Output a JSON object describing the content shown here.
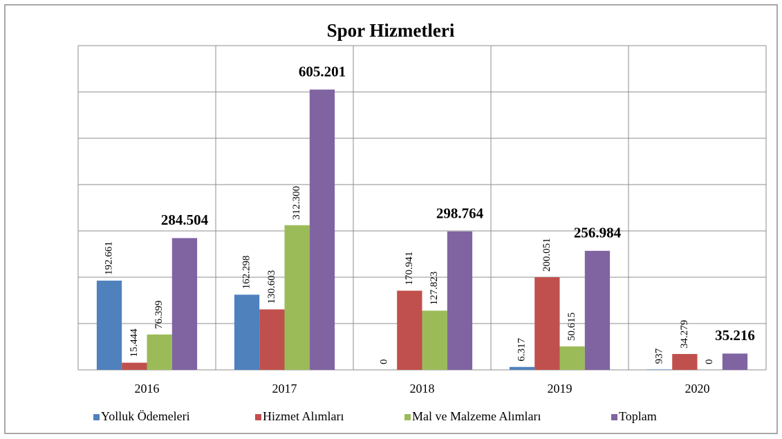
{
  "chart_data": {
    "type": "bar",
    "title": "Spor Hizmetleri",
    "categories": [
      "2016",
      "2017",
      "2018",
      "2019",
      "2020"
    ],
    "series": [
      {
        "name": "Yolluk Ödemeleri",
        "color": "#4f81bd",
        "values": [
          192661,
          162298,
          0,
          6317,
          937
        ],
        "value_labels": [
          "192.661",
          "162.298",
          "0",
          "6.317",
          "937"
        ]
      },
      {
        "name": "Hizmet Alımları",
        "color": "#c0504d",
        "values": [
          15444,
          130603,
          170941,
          200051,
          34279
        ],
        "value_labels": [
          "15.444",
          "130.603",
          "170.941",
          "200.051",
          "34.279"
        ]
      },
      {
        "name": "Mal ve Malzeme Alımları",
        "color": "#9bbb59",
        "values": [
          76399,
          312300,
          127823,
          50615,
          0
        ],
        "value_labels": [
          "76.399",
          "312.300",
          "127.823",
          "50.615",
          "0"
        ]
      },
      {
        "name": "Toplam",
        "color": "#8064a2",
        "values": [
          284504,
          605201,
          298764,
          256984,
          35216
        ],
        "value_labels": [
          "284.504",
          "605.201",
          "298.764",
          "256.984",
          "35.216"
        ]
      }
    ],
    "ylim": [
      0,
      700000
    ],
    "yticks": [
      0,
      100000,
      200000,
      300000,
      400000,
      500000,
      600000,
      700000
    ],
    "grid": true,
    "legend": "bottom"
  }
}
